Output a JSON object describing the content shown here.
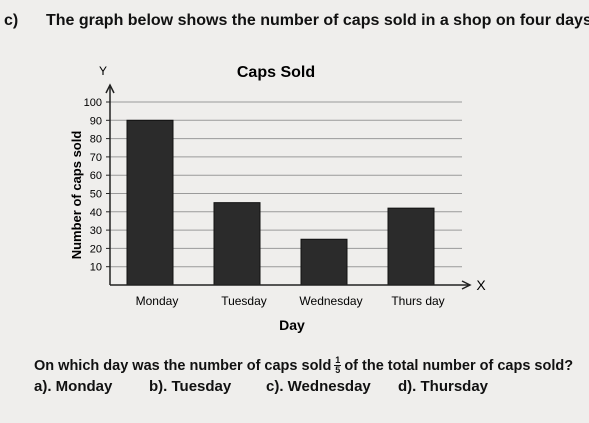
{
  "heading": {
    "label": "c)",
    "text": "The graph below shows the number of caps sold in a shop on four days."
  },
  "question": {
    "prefix": "On which day was the number of caps sold",
    "fraction_num": "1",
    "fraction_den": "5",
    "suffix": "of the total number of caps sold?"
  },
  "options": [
    {
      "text": "a). Monday"
    },
    {
      "text": "b). Tuesday"
    },
    {
      "text": "c). Wednesday"
    },
    {
      "text": "d). Thursday"
    }
  ],
  "chart_data": {
    "type": "bar",
    "title": "Caps Sold",
    "xlabel": "Day",
    "ylabel": "Number of caps sold",
    "x_axis_letter": "X",
    "y_axis_letter": "Y",
    "categories": [
      "Monday",
      "Tuesday",
      "Wednesday",
      "Thurs day"
    ],
    "values": [
      90,
      45,
      25,
      42
    ],
    "ylim": [
      0,
      100
    ],
    "yticks": [
      10,
      20,
      30,
      40,
      50,
      60,
      70,
      80,
      90,
      100
    ],
    "grid": true,
    "bar_color": "#2b2b2b"
  }
}
